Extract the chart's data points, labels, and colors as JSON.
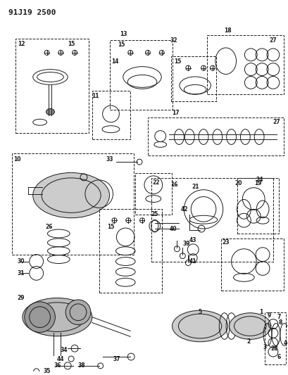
{
  "title": "91J19 2500",
  "bg_color": "#ffffff",
  "line_color": "#1a1a1a",
  "fig_width": 4.1,
  "fig_height": 5.33,
  "dpi": 100
}
